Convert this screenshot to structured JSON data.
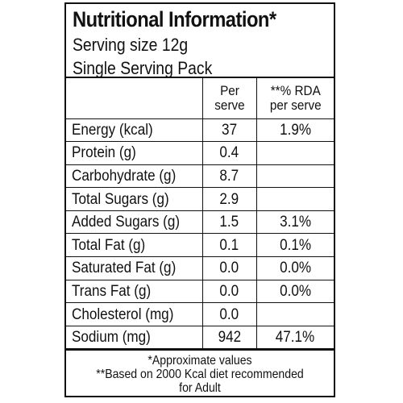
{
  "label": {
    "title": "Nutritional Information*",
    "serving_size": "Serving size 12g",
    "pack": "Single Serving Pack"
  },
  "columns": {
    "per_serve_line1": "Per",
    "per_serve_line2": "serve",
    "rda_line1": "**% RDA",
    "rda_line2": "per serve"
  },
  "rows": [
    {
      "name": "Energy (kcal)",
      "value": "37",
      "rda": "1.9%"
    },
    {
      "name": "Protein (g)",
      "value": "0.4",
      "rda": ""
    },
    {
      "name": "Carbohydrate (g)",
      "value": "8.7",
      "rda": ""
    },
    {
      "name": "Total Sugars (g)",
      "value": "2.9",
      "rda": ""
    },
    {
      "name": "Added Sugars (g)",
      "value": "1.5",
      "rda": "3.1%"
    },
    {
      "name": "Total Fat (g)",
      "value": "0.1",
      "rda": "0.1%"
    },
    {
      "name": "Saturated Fat (g)",
      "value": "0.0",
      "rda": "0.0%"
    },
    {
      "name": "Trans Fat (g)",
      "value": "0.0",
      "rda": "0.0%"
    },
    {
      "name": "Cholesterol (mg)",
      "value": "0.0",
      "rda": ""
    },
    {
      "name": "Sodium (mg)",
      "value": "942",
      "rda": "47.1%"
    }
  ],
  "footer": {
    "note1": "*Approximate values",
    "note2": "**Based on 2000 Kcal diet recommended",
    "note3": "for Adult"
  }
}
